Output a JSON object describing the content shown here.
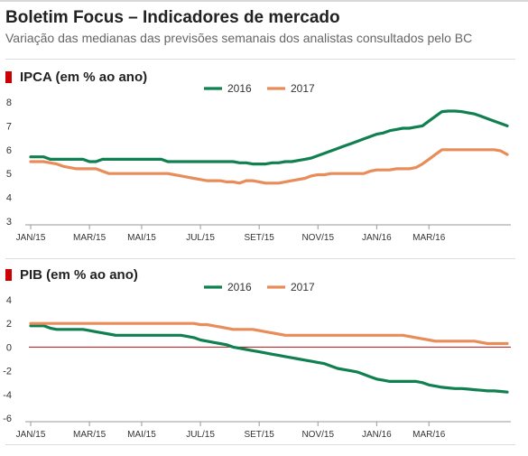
{
  "header": {
    "title": "Boletim Focus – Indicadores de mercado",
    "subtitle": "Variação das medianas das previsões semanais dos analistas consultados pelo BC"
  },
  "colors": {
    "series_2016": "#118050",
    "series_2017": "#e88c5a",
    "zero_line": "#b01010",
    "marker": "#cc0000",
    "axis": "#999999"
  },
  "chart_data": [
    {
      "type": "line",
      "title": "IPCA (em % ao ano)",
      "x_tick_labels": [
        "JAN/15",
        "MAR/15",
        "MAI/15",
        "JUL/15",
        "SET/15",
        "NOV/15",
        "JAN/16",
        "MAR/16"
      ],
      "x_ticks_at_week": [
        0,
        9,
        17,
        26,
        35,
        44,
        53,
        61
      ],
      "ylim": [
        3,
        8
      ],
      "yticks": [
        3,
        4,
        5,
        6,
        7,
        8
      ],
      "zero_line": false,
      "legend": "top-center",
      "series": [
        {
          "name": "2016",
          "color_key": "series_2016",
          "values": [
            5.7,
            5.7,
            5.7,
            5.6,
            5.6,
            5.6,
            5.6,
            5.6,
            5.6,
            5.5,
            5.5,
            5.6,
            5.6,
            5.6,
            5.6,
            5.6,
            5.6,
            5.6,
            5.6,
            5.6,
            5.6,
            5.5,
            5.5,
            5.5,
            5.5,
            5.5,
            5.5,
            5.5,
            5.5,
            5.5,
            5.5,
            5.5,
            5.45,
            5.45,
            5.4,
            5.4,
            5.4,
            5.45,
            5.45,
            5.5,
            5.5,
            5.55,
            5.6,
            5.65,
            5.75,
            5.85,
            5.95,
            6.05,
            6.15,
            6.25,
            6.35,
            6.45,
            6.55,
            6.65,
            6.7,
            6.8,
            6.85,
            6.9,
            6.9,
            6.95,
            7.0,
            7.2,
            7.4,
            7.6,
            7.62,
            7.62,
            7.6,
            7.55,
            7.5,
            7.4,
            7.3,
            7.2,
            7.1,
            7.0
          ]
        },
        {
          "name": "2017",
          "color_key": "series_2017",
          "values": [
            5.5,
            5.5,
            5.5,
            5.45,
            5.4,
            5.3,
            5.25,
            5.2,
            5.2,
            5.2,
            5.2,
            5.1,
            5.0,
            5.0,
            5.0,
            5.0,
            5.0,
            5.0,
            5.0,
            5.0,
            5.0,
            5.0,
            4.95,
            4.9,
            4.85,
            4.8,
            4.75,
            4.7,
            4.7,
            4.7,
            4.65,
            4.65,
            4.6,
            4.7,
            4.7,
            4.65,
            4.6,
            4.6,
            4.6,
            4.65,
            4.7,
            4.75,
            4.8,
            4.9,
            4.95,
            4.95,
            5.0,
            5.0,
            5.0,
            5.0,
            5.0,
            5.0,
            5.1,
            5.15,
            5.15,
            5.15,
            5.2,
            5.2,
            5.2,
            5.25,
            5.4,
            5.6,
            5.8,
            6.0,
            6.0,
            6.0,
            6.0,
            6.0,
            6.0,
            6.0,
            6.0,
            6.0,
            5.95,
            5.8
          ]
        }
      ]
    },
    {
      "type": "line",
      "title": "PIB (em % ao ano)",
      "x_tick_labels": [
        "JAN/15",
        "MAR/15",
        "MAI/15",
        "JUL/15",
        "SET/15",
        "NOV/15",
        "JAN/16",
        "MAR/16"
      ],
      "x_ticks_at_week": [
        0,
        9,
        17,
        26,
        35,
        44,
        53,
        61
      ],
      "ylim": [
        -6,
        4
      ],
      "yticks": [
        -6,
        -4,
        -2,
        0,
        2,
        4
      ],
      "zero_line": true,
      "legend": "top-center",
      "series": [
        {
          "name": "2016",
          "color_key": "series_2016",
          "values": [
            1.8,
            1.8,
            1.8,
            1.6,
            1.5,
            1.5,
            1.5,
            1.5,
            1.5,
            1.4,
            1.3,
            1.2,
            1.1,
            1.0,
            1.0,
            1.0,
            1.0,
            1.0,
            1.0,
            1.0,
            1.0,
            1.0,
            1.0,
            1.0,
            0.9,
            0.8,
            0.6,
            0.5,
            0.4,
            0.3,
            0.2,
            0.0,
            -0.1,
            -0.2,
            -0.3,
            -0.4,
            -0.5,
            -0.6,
            -0.7,
            -0.8,
            -0.9,
            -1.0,
            -1.1,
            -1.2,
            -1.3,
            -1.4,
            -1.6,
            -1.8,
            -1.9,
            -2.0,
            -2.1,
            -2.3,
            -2.5,
            -2.7,
            -2.8,
            -2.9,
            -2.9,
            -2.9,
            -2.9,
            -2.9,
            -3.0,
            -3.2,
            -3.3,
            -3.4,
            -3.45,
            -3.5,
            -3.5,
            -3.55,
            -3.6,
            -3.65,
            -3.7,
            -3.7,
            -3.75,
            -3.8
          ]
        },
        {
          "name": "2017",
          "color_key": "series_2017",
          "values": [
            2.0,
            2.0,
            2.0,
            2.0,
            2.0,
            2.0,
            2.0,
            2.0,
            2.0,
            2.0,
            2.0,
            2.0,
            2.0,
            2.0,
            2.0,
            2.0,
            2.0,
            2.0,
            2.0,
            2.0,
            2.0,
            2.0,
            2.0,
            2.0,
            2.0,
            2.0,
            1.9,
            1.9,
            1.8,
            1.7,
            1.6,
            1.5,
            1.5,
            1.5,
            1.5,
            1.4,
            1.3,
            1.2,
            1.1,
            1.0,
            1.0,
            1.0,
            1.0,
            1.0,
            1.0,
            1.0,
            1.0,
            1.0,
            1.0,
            1.0,
            1.0,
            1.0,
            1.0,
            1.0,
            1.0,
            1.0,
            1.0,
            1.0,
            0.9,
            0.8,
            0.7,
            0.6,
            0.5,
            0.5,
            0.5,
            0.5,
            0.5,
            0.5,
            0.5,
            0.4,
            0.3,
            0.3,
            0.3,
            0.3
          ]
        }
      ]
    }
  ]
}
